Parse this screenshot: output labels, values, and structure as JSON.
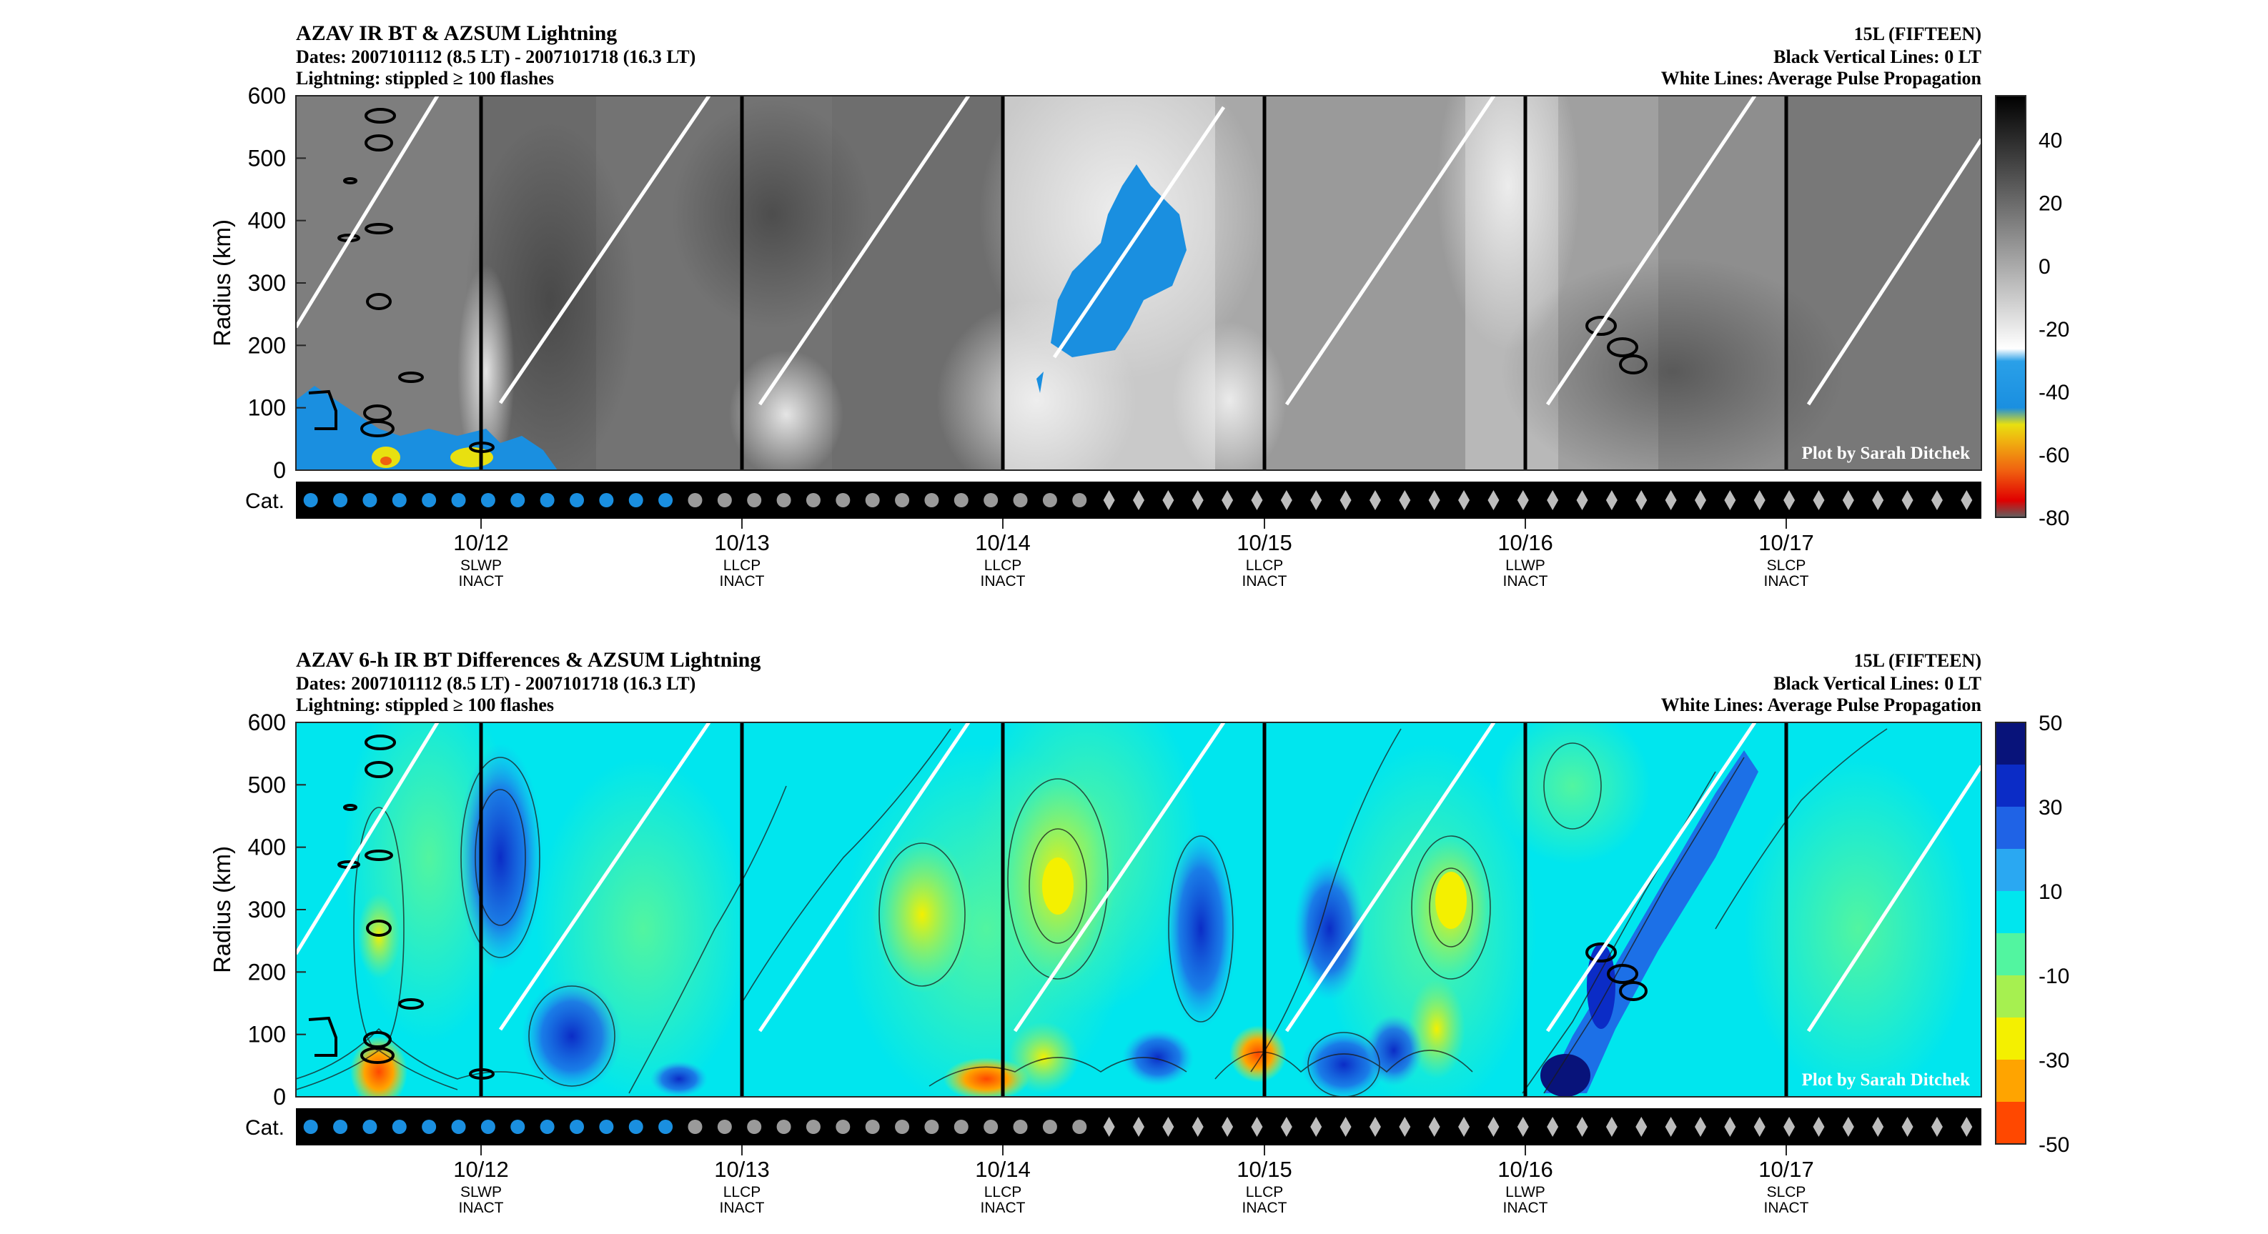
{
  "common": {
    "hdr_right": [
      "15L (FIFTEEN)",
      "Black Vertical Lines: 0 LT",
      "White Lines: Average Pulse Propagation"
    ],
    "ylabel": "Radius (km)",
    "yticks": [
      "0",
      "100",
      "200",
      "300",
      "400",
      "500",
      "600"
    ],
    "cat_label": "Cat.",
    "watermark": "Plot by Sarah Ditchek",
    "days": [
      {
        "date": "10/12",
        "l1": "SLWP",
        "l2": "INACT"
      },
      {
        "date": "10/13",
        "l1": "LLCP",
        "l2": "INACT"
      },
      {
        "date": "10/14",
        "l1": "LLCP",
        "l2": "INACT"
      },
      {
        "date": "10/15",
        "l1": "LLCP",
        "l2": "INACT"
      },
      {
        "date": "10/16",
        "l1": "LLWP",
        "l2": "INACT"
      },
      {
        "date": "10/17",
        "l1": "SLCP",
        "l2": "INACT"
      }
    ],
    "cat_markers": [
      "dot-blue",
      "dot-blue",
      "dot-blue",
      "dot-blue",
      "dot-blue",
      "dot-blue",
      "dot-blue",
      "dot-blue",
      "dot-blue",
      "dot-blue",
      "dot-blue",
      "dot-blue",
      "dot-blue",
      "dot-gray",
      "dot-gray",
      "dot-gray",
      "dot-gray",
      "dot-gray",
      "dot-gray",
      "dot-gray",
      "dot-gray",
      "dot-gray",
      "dot-gray",
      "dot-gray",
      "dot-gray",
      "dot-gray",
      "dot-gray",
      "diamond",
      "diamond",
      "diamond",
      "diamond",
      "diamond",
      "diamond",
      "diamond",
      "diamond",
      "diamond",
      "diamond",
      "diamond",
      "diamond",
      "diamond",
      "diamond",
      "diamond",
      "diamond",
      "diamond",
      "diamond",
      "diamond",
      "diamond",
      "diamond",
      "diamond",
      "diamond",
      "diamond",
      "diamond",
      "diamond",
      "diamond",
      "diamond",
      "diamond",
      "diamond"
    ]
  },
  "panels": [
    {
      "title": "AZAV IR BT & AZSUM Lightning",
      "dates": "Dates: 2007101112 (8.5 LT) - 2007101718 (16.3 LT)",
      "lightning": "Lightning: stippled ≥ 100 flashes",
      "cbar_ticks": [
        "40",
        "20",
        "0",
        "-20",
        "-40",
        "-60",
        "-80"
      ]
    },
    {
      "title": "AZAV 6-h IR BT Differences & AZSUM Lightning",
      "dates": "Dates: 2007101112 (8.5 LT) - 2007101718 (16.3 LT)",
      "lightning": "Lightning: stippled ≥ 100 flashes",
      "cbar_ticks": [
        "50",
        "30",
        "10",
        "-10",
        "-30",
        "-50"
      ]
    }
  ],
  "chart_data": [
    {
      "type": "heatmap",
      "title": "AZAV IR BT & AZSUM Lightning",
      "ylabel": "Radius (km)",
      "ylim": [
        0,
        600
      ],
      "x_tick_labels": [
        "10/12",
        "10/13",
        "10/14",
        "10/15",
        "10/16",
        "10/17"
      ],
      "colorbar": {
        "range": [
          -80,
          54
        ],
        "ticks": [
          40,
          20,
          0,
          -20,
          -40,
          -60,
          -80
        ],
        "colors": [
          "#1a1a1a",
          "#5a5a5a",
          "#9a9a9a",
          "#dcdcdc",
          "#ffffff",
          "#1a8fe0",
          "#e8e010",
          "#f08010",
          "#e00000",
          "#606060"
        ]
      }
    },
    {
      "type": "heatmap",
      "title": "AZAV 6-h IR BT Differences & AZSUM Lightning",
      "ylabel": "Radius (km)",
      "ylim": [
        0,
        600
      ],
      "x_tick_labels": [
        "10/12",
        "10/13",
        "10/14",
        "10/15",
        "10/16",
        "10/17"
      ],
      "colorbar": {
        "range": [
          -50,
          50
        ],
        "ticks": [
          50,
          30,
          10,
          -10,
          -30,
          -50
        ],
        "colors": [
          "#08137a",
          "#0b2cc6",
          "#1f63e6",
          "#2aa8f2",
          "#00e6ee",
          "#52f5a0",
          "#a6f050",
          "#f4f000",
          "#ffa400",
          "#ff4800"
        ]
      }
    }
  ]
}
